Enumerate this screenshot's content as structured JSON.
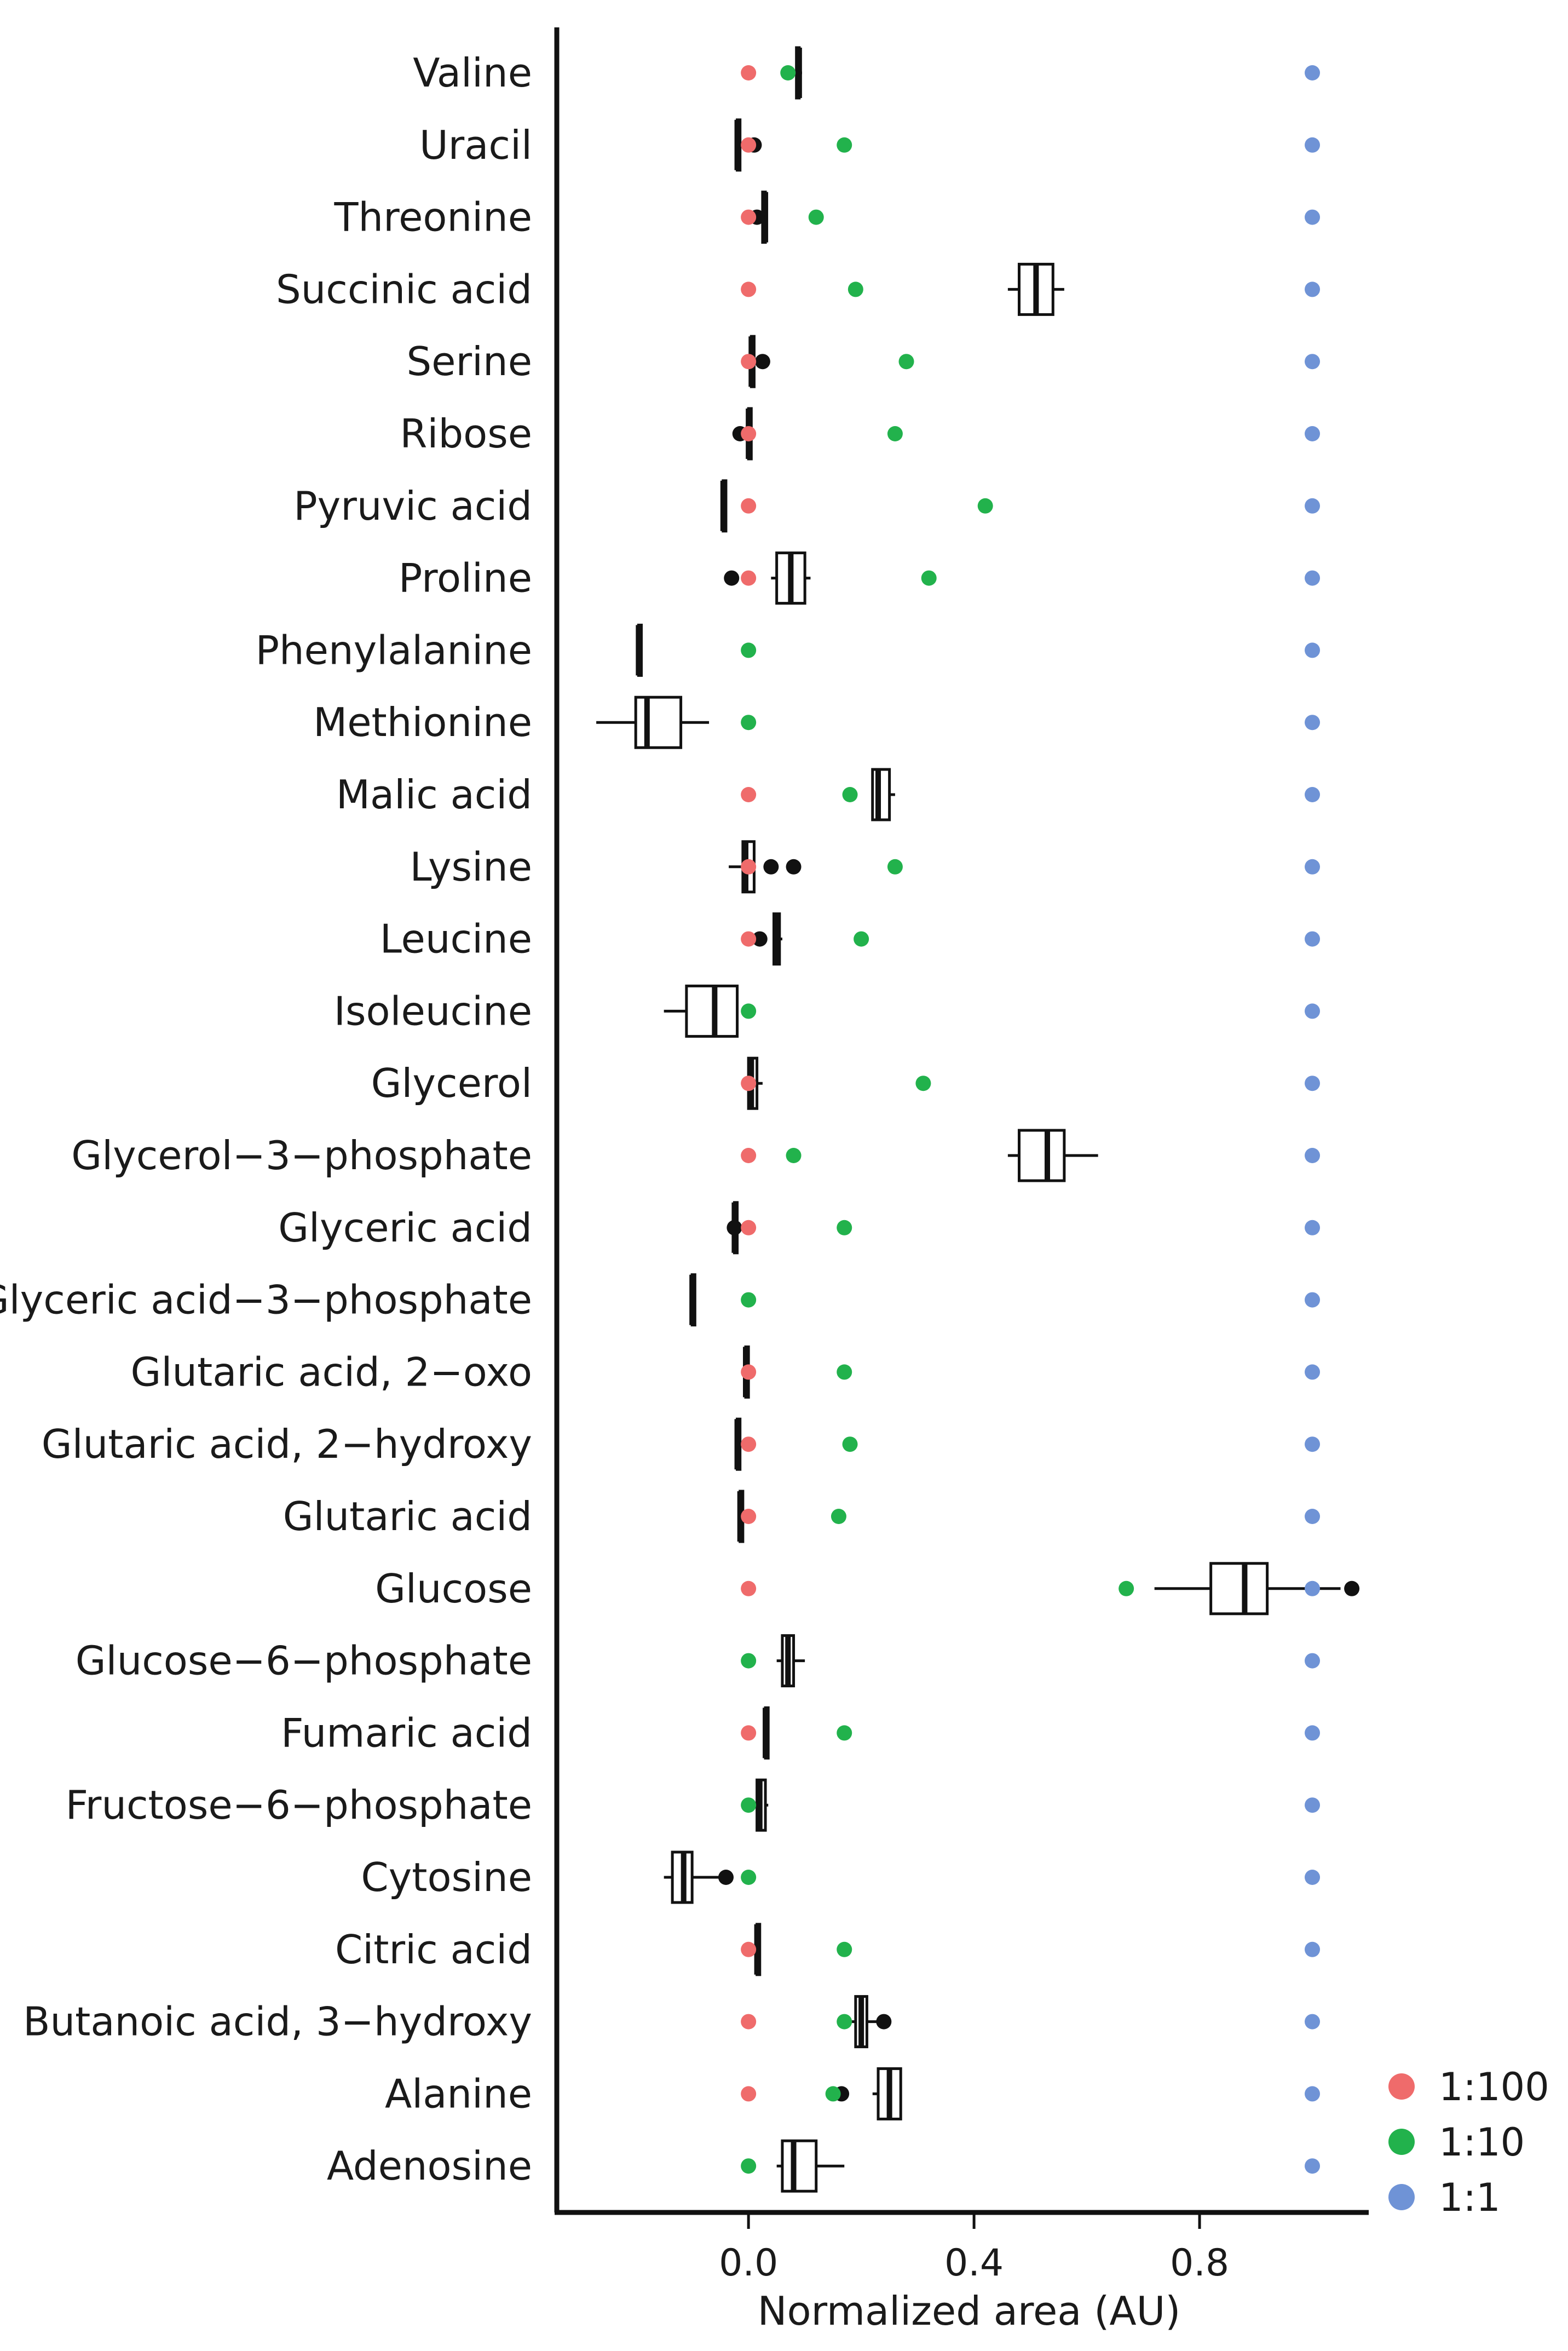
{
  "chart_data": {
    "type": "box-dot",
    "xlabel": "Normalized area (AU)",
    "ylabel": "",
    "xlim": [
      -0.34,
      1.1
    ],
    "xticks": [
      0.0,
      0.4,
      0.8
    ],
    "xtick_labels": [
      "0.0",
      "0.4",
      "0.8"
    ],
    "legend_position": "bottom-right",
    "series": [
      {
        "name": "1:100",
        "color": "#ef6b6b"
      },
      {
        "name": "1:10",
        "color": "#22b24c"
      },
      {
        "name": "1:1",
        "color": "#6f93d6"
      }
    ],
    "categories": [
      {
        "name": "Valine",
        "dots": {
          "1:100": 0.0,
          "1:10": 0.07,
          "1:1": 1.0
        },
        "box": {
          "min": 0.085,
          "q1": 0.085,
          "median": 0.09,
          "q3": 0.09,
          "max": 0.095
        },
        "outliers": []
      },
      {
        "name": "Uracil",
        "dots": {
          "1:100": 0.0,
          "1:10": 0.17,
          "1:1": 1.0
        },
        "box": {
          "min": -0.02,
          "q1": -0.02,
          "median": -0.02,
          "q3": -0.015,
          "max": -0.015
        },
        "outliers": [
          0.01
        ]
      },
      {
        "name": "Threonine",
        "dots": {
          "1:100": 0.0,
          "1:10": 0.12,
          "1:1": 1.0
        },
        "box": {
          "min": 0.025,
          "q1": 0.025,
          "median": 0.03,
          "q3": 0.03,
          "max": 0.03
        },
        "outliers": [
          0.015
        ]
      },
      {
        "name": "Succinic acid",
        "dots": {
          "1:100": 0.0,
          "1:10": 0.19,
          "1:1": 1.0
        },
        "box": {
          "min": 0.46,
          "q1": 0.48,
          "median": 0.51,
          "q3": 0.54,
          "max": 0.56
        },
        "outliers": []
      },
      {
        "name": "Serine",
        "dots": {
          "1:100": 0.0,
          "1:10": 0.28,
          "1:1": 1.0
        },
        "box": {
          "min": 0.005,
          "q1": 0.005,
          "median": 0.005,
          "q3": 0.01,
          "max": 0.01
        },
        "outliers": [
          0.025
        ]
      },
      {
        "name": "Ribose",
        "dots": {
          "1:100": 0.0,
          "1:10": 0.26,
          "1:1": 1.0
        },
        "box": {
          "min": 0.0,
          "q1": 0.0,
          "median": 0.0,
          "q3": 0.005,
          "max": 0.005
        },
        "outliers": [
          -0.015
        ]
      },
      {
        "name": "Pyruvic acid",
        "dots": {
          "1:100": 0.0,
          "1:10": 0.42,
          "1:1": 1.0
        },
        "box": {
          "min": -0.045,
          "q1": -0.045,
          "median": -0.045,
          "q3": -0.04,
          "max": -0.04
        },
        "outliers": []
      },
      {
        "name": "Proline",
        "dots": {
          "1:100": 0.0,
          "1:10": 0.32,
          "1:1": 1.0
        },
        "box": {
          "min": 0.04,
          "q1": 0.05,
          "median": 0.075,
          "q3": 0.1,
          "max": 0.11
        },
        "outliers": [
          -0.03
        ]
      },
      {
        "name": "Phenylalanine",
        "dots": {
          "1:10": 0.0,
          "1:1": 1.0
        },
        "box": {
          "min": -0.195,
          "q1": -0.195,
          "median": -0.195,
          "q3": -0.19,
          "max": -0.19
        },
        "outliers": []
      },
      {
        "name": "Methionine",
        "dots": {
          "1:10": 0.0,
          "1:1": 1.0
        },
        "box": {
          "min": -0.27,
          "q1": -0.2,
          "median": -0.18,
          "q3": -0.12,
          "max": -0.07
        },
        "outliers": []
      },
      {
        "name": "Malic acid",
        "dots": {
          "1:100": 0.0,
          "1:10": 0.18,
          "1:1": 1.0
        },
        "box": {
          "min": 0.22,
          "q1": 0.22,
          "median": 0.23,
          "q3": 0.25,
          "max": 0.26
        },
        "outliers": []
      },
      {
        "name": "Lysine",
        "dots": {
          "1:100": 0.0,
          "1:10": 0.26,
          "1:1": 1.0
        },
        "box": {
          "min": -0.035,
          "q1": -0.01,
          "median": -0.005,
          "q3": 0.01,
          "max": 0.01
        },
        "outliers": [
          0.04,
          0.08
        ]
      },
      {
        "name": "Leucine",
        "dots": {
          "1:100": 0.0,
          "1:10": 0.2,
          "1:1": 1.0
        },
        "box": {
          "min": 0.045,
          "q1": 0.045,
          "median": 0.05,
          "q3": 0.055,
          "max": 0.06
        },
        "outliers": [
          0.02
        ]
      },
      {
        "name": "Isoleucine",
        "dots": {
          "1:10": 0.0,
          "1:1": 1.0
        },
        "box": {
          "min": -0.15,
          "q1": -0.11,
          "median": -0.06,
          "q3": -0.02,
          "max": -0.02
        },
        "outliers": []
      },
      {
        "name": "Glycerol",
        "dots": {
          "1:100": 0.0,
          "1:10": 0.31,
          "1:1": 1.0
        },
        "box": {
          "min": -0.01,
          "q1": 0.0,
          "median": 0.005,
          "q3": 0.015,
          "max": 0.025
        },
        "outliers": []
      },
      {
        "name": "Glycerol−3−phosphate",
        "dots": {
          "1:100": 0.0,
          "1:10": 0.08,
          "1:1": 1.0
        },
        "box": {
          "min": 0.46,
          "q1": 0.48,
          "median": 0.53,
          "q3": 0.56,
          "max": 0.62
        },
        "outliers": []
      },
      {
        "name": "Glyceric acid",
        "dots": {
          "1:100": 0.0,
          "1:10": 0.17,
          "1:1": 1.0
        },
        "box": {
          "min": -0.025,
          "q1": -0.025,
          "median": -0.025,
          "q3": -0.02,
          "max": -0.02
        },
        "outliers": [
          -0.025
        ]
      },
      {
        "name": "Glyceric acid−3−phosphate",
        "dots": {
          "1:10": 0.0,
          "1:1": 1.0
        },
        "box": {
          "min": -0.1,
          "q1": -0.1,
          "median": -0.1,
          "q3": -0.095,
          "max": -0.095
        },
        "outliers": []
      },
      {
        "name": "Glutaric acid, 2−oxo",
        "dots": {
          "1:100": 0.0,
          "1:10": 0.17,
          "1:1": 1.0
        },
        "box": {
          "min": -0.005,
          "q1": -0.005,
          "median": -0.005,
          "q3": 0.0,
          "max": 0.0
        },
        "outliers": []
      },
      {
        "name": "Glutaric acid, 2−hydroxy",
        "dots": {
          "1:100": 0.0,
          "1:10": 0.18,
          "1:1": 1.0
        },
        "box": {
          "min": -0.02,
          "q1": -0.02,
          "median": -0.02,
          "q3": -0.015,
          "max": -0.015
        },
        "outliers": []
      },
      {
        "name": "Glutaric acid",
        "dots": {
          "1:100": 0.0,
          "1:10": 0.16,
          "1:1": 1.0
        },
        "box": {
          "min": -0.015,
          "q1": -0.015,
          "median": -0.015,
          "q3": -0.01,
          "max": -0.01
        },
        "outliers": []
      },
      {
        "name": "Glucose",
        "dots": {
          "1:100": 0.0,
          "1:10": 0.67,
          "1:1": 1.0
        },
        "box": {
          "min": 0.72,
          "q1": 0.82,
          "median": 0.88,
          "q3": 0.92,
          "max": 1.05
        },
        "outliers": [
          1.07
        ]
      },
      {
        "name": "Glucose−6−phosphate",
        "dots": {
          "1:10": 0.0,
          "1:1": 1.0
        },
        "box": {
          "min": 0.05,
          "q1": 0.06,
          "median": 0.07,
          "q3": 0.08,
          "max": 0.1
        },
        "outliers": []
      },
      {
        "name": "Fumaric acid",
        "dots": {
          "1:100": 0.0,
          "1:10": 0.17,
          "1:1": 1.0
        },
        "box": {
          "min": 0.03,
          "q1": 0.03,
          "median": 0.03,
          "q3": 0.035,
          "max": 0.035
        },
        "outliers": []
      },
      {
        "name": "Fructose−6−phosphate",
        "dots": {
          "1:10": 0.0,
          "1:1": 1.0
        },
        "box": {
          "min": 0.01,
          "q1": 0.015,
          "median": 0.02,
          "q3": 0.03,
          "max": 0.035
        },
        "outliers": []
      },
      {
        "name": "Cytosine",
        "dots": {
          "1:10": 0.0,
          "1:1": 1.0
        },
        "box": {
          "min": -0.15,
          "q1": -0.135,
          "median": -0.115,
          "q3": -0.1,
          "max": -0.05
        },
        "outliers": [
          -0.04
        ]
      },
      {
        "name": "Citric acid",
        "dots": {
          "1:100": 0.0,
          "1:10": 0.17,
          "1:1": 1.0
        },
        "box": {
          "min": 0.015,
          "q1": 0.015,
          "median": 0.015,
          "q3": 0.02,
          "max": 0.02
        },
        "outliers": []
      },
      {
        "name": "Butanoic acid, 3−hydroxy",
        "dots": {
          "1:100": 0.0,
          "1:10": 0.17,
          "1:1": 1.0
        },
        "box": {
          "min": 0.18,
          "q1": 0.19,
          "median": 0.2,
          "q3": 0.21,
          "max": 0.23
        },
        "outliers": [
          0.24
        ]
      },
      {
        "name": "Alanine",
        "dots": {
          "1:100": 0.0,
          "1:10": 0.15,
          "1:1": 1.0
        },
        "box": {
          "min": 0.22,
          "q1": 0.23,
          "median": 0.25,
          "q3": 0.27,
          "max": 0.27
        },
        "outliers": [
          0.165
        ]
      },
      {
        "name": "Adenosine",
        "dots": {
          "1:10": 0.0,
          "1:1": 1.0
        },
        "box": {
          "min": 0.05,
          "q1": 0.06,
          "median": 0.08,
          "q3": 0.12,
          "max": 0.17
        },
        "outliers": []
      }
    ]
  }
}
